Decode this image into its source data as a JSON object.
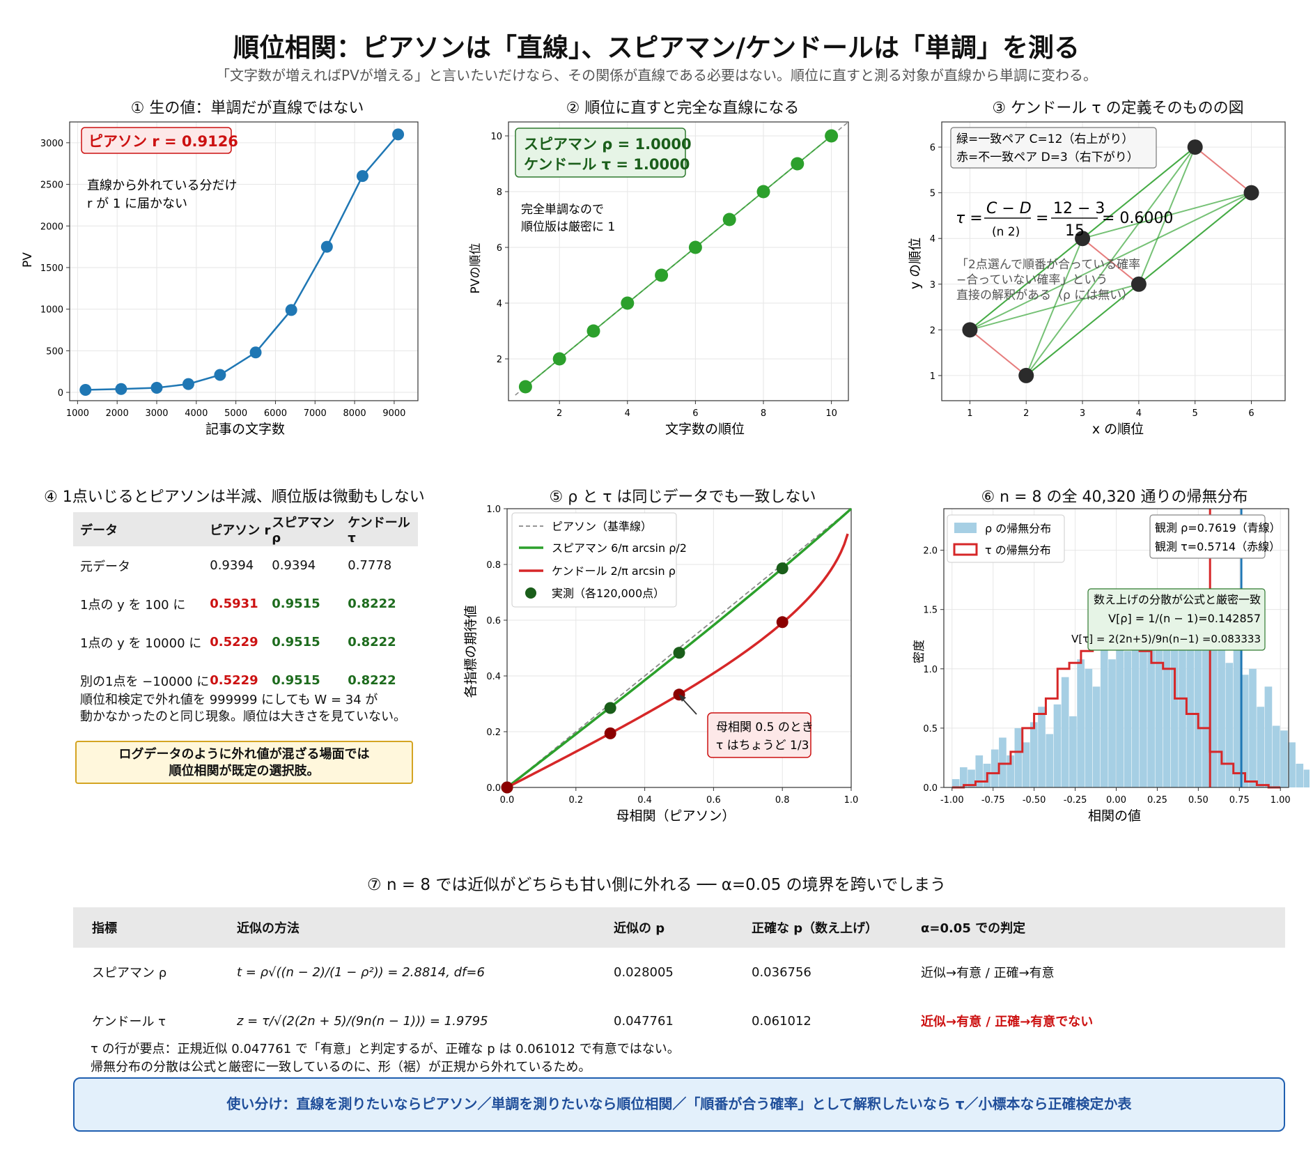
{
  "title": "順位相関：ピアソンは「直線」、スピアマン/ケンドールは「単調」を測る",
  "subtitle": "「文字数が増えればPVが増える」と言いたいだけなら、その関係が直線である必要はない。順位に直すと測る対象が直線から単調に変わる。",
  "panel1": {
    "title": "① 生の値：単調だが直線ではない",
    "badge": "ピアソン r = 0.9126",
    "note_line1": "直線から外れている分だけ",
    "note_line2": "r が 1 に届かない"
  },
  "panel2": {
    "title": "② 順位に直すと完全な直線になる",
    "badge_line1": "スピアマン ρ = 1.0000",
    "badge_line2": "ケンドール τ = 1.0000",
    "note_line1": "完全単調なので",
    "note_line2": "順位版は厳密に 1"
  },
  "panel3": {
    "title": "③ ケンドール τ の定義そのものの図",
    "legend_line1": "緑=一致ペア C=12（右上がり）",
    "legend_line2": "赤=不一致ペア D=3（右下がり）",
    "formula_lhs": "τ =",
    "formula_num": "C − D",
    "formula_den": "(n 2)",
    "formula_eq": "=",
    "formula_num2": "12 − 3",
    "formula_den2": "15",
    "formula_res": "= 0.6000",
    "note_line1": "「2点選んで順番が合っている確率",
    "note_line2": "−合っていない確率」という",
    "note_line3": "直接の解釈がある（ρ には無い）"
  },
  "panel4": {
    "title": "④ 1点いじるとピアソンは半減、順位版は微動もしない",
    "headers": [
      "データ",
      "ピアソン r",
      "スピアマン ρ",
      "ケンドール τ"
    ],
    "rows": [
      [
        "元データ",
        "0.9394",
        "0.9394",
        "0.7778"
      ],
      [
        "1点の y を 100 に",
        "0.5931",
        "0.9515",
        "0.8222"
      ],
      [
        "1点の y を 10000 に",
        "0.5229",
        "0.9515",
        "0.8222"
      ],
      [
        "別の1点を −10000 に",
        "0.5229",
        "0.9515",
        "0.8222"
      ]
    ],
    "note_line1": "順位和検定で外れ値を 999999 にしても W = 34 が",
    "note_line2": "動かなかったのと同じ現象。順位は大きさを見ていない。",
    "box_line1": "ログデータのように外れ値が混ざる場面では",
    "box_line2": "順位相関が既定の選択肢。"
  },
  "panel5": {
    "title": "⑤ ρ と τ は同じデータでも一致しない",
    "legend": [
      "ピアソン（基準線）",
      "スピアマン 6/π arcsin ρ/2",
      "ケンドール 2/π arcsin ρ",
      "実測（各120,000点）"
    ],
    "annotation_line1": "母相関 0.5 のとき",
    "annotation_line2": "τ はちょうど 1/3"
  },
  "panel6": {
    "title": "⑥ n = 8 の全 40,320 通りの帰無分布",
    "legend": [
      "ρ の帰無分布",
      "τ の帰無分布"
    ],
    "obs_line1": "観測 ρ=0.7619（青線）",
    "obs_line2": "観測 τ=0.5714（赤線）",
    "var_line1": "数え上げの分散が公式と厳密一致",
    "var_line2": "V[ρ] = 1/(n − 1)=0.142857",
    "var_line3": "V[τ] = 2(2n+5)/9n(n−1) =0.083333"
  },
  "table7": {
    "title": "⑦ n = 8 では近似がどちらも甘い側に外れる ── α=0.05 の境界を跨いでしまう",
    "headers": [
      "指標",
      "近似の方法",
      "近似の p",
      "正確な p（数え上げ）",
      "α=0.05 での判定"
    ],
    "rows": [
      [
        "スピアマン ρ",
        "t = ρ√((n − 2)/(1 − ρ²)) = 2.8814, df=6",
        "0.028005",
        "0.036756",
        "近似→有意 / 正確→有意"
      ],
      [
        "ケンドール τ",
        "z = τ/√(2(2n + 5)/(9n(n − 1))) = 1.9795",
        "0.047761",
        "0.061012",
        "近似→有意 / 正確→有意でない"
      ]
    ],
    "note_line1": "τ の行が要点：正規近似 0.047761 で「有意」と判定するが、正確な p は 0.061012 で有意ではない。",
    "note_line2": "帰無分布の分散は公式と厳密に一致しているのに、形（裾）が正規から外れているため。"
  },
  "footer": "使い分け：直線を測りたいならピアソン／単調を測りたいなら順位相関／「順番が合う確率」として解釈したいなら τ／小標本なら正確検定か表",
  "colors": {
    "blue": "#1f77b4",
    "green": "#2ca02c",
    "red": "#d62728",
    "darkgreen": "#1a5e1a",
    "darkred": "#8b0000"
  },
  "chart_data": [
    {
      "type": "line",
      "title": "① 生の値：単調だが直線ではない",
      "xlabel": "記事の文字数",
      "ylabel": "PV",
      "x": [
        1200,
        2100,
        3000,
        3800,
        4600,
        5500,
        6400,
        7300,
        8200,
        9100
      ],
      "y": [
        30,
        40,
        55,
        100,
        210,
        480,
        990,
        1750,
        2600,
        3100
      ],
      "xlim": [
        800,
        9600
      ],
      "ylim": [
        -100,
        3250
      ],
      "xticks": [
        1000,
        2000,
        3000,
        4000,
        5000,
        6000,
        7000,
        8000,
        9000
      ],
      "yticks": [
        0,
        500,
        1000,
        1500,
        2000,
        2500,
        3000
      ],
      "grid": true
    },
    {
      "type": "scatter",
      "title": "② 順位に直すと完全な直線になる",
      "xlabel": "文字数の順位",
      "ylabel": "PVの順位",
      "x": [
        1,
        2,
        3,
        4,
        5,
        6,
        7,
        8,
        9,
        10
      ],
      "y": [
        1,
        2,
        3,
        4,
        5,
        6,
        7,
        8,
        9,
        10
      ],
      "xlim": [
        0.5,
        10.5
      ],
      "ylim": [
        0.5,
        10.5
      ],
      "xticks": [
        2,
        4,
        6,
        8,
        10
      ],
      "yticks": [
        2,
        4,
        6,
        8,
        10
      ],
      "grid": true
    },
    {
      "type": "scatter",
      "title": "③ ケンドール τ の定義そのものの図",
      "xlabel": "x の順位",
      "ylabel": "y の順位",
      "x": [
        1,
        2,
        3,
        4,
        5,
        6
      ],
      "y": [
        2,
        1,
        4,
        3,
        6,
        5
      ],
      "xlim": [
        0.5,
        6.6
      ],
      "ylim": [
        0.45,
        6.55
      ],
      "xticks": [
        1,
        2,
        3,
        4,
        5,
        6
      ],
      "yticks": [
        1,
        2,
        3,
        4,
        5,
        6
      ],
      "grid": true
    },
    {
      "type": "line",
      "title": "⑤ ρ と τ は同じデータでも一致しない",
      "xlabel": "母相関（ピアソン）",
      "ylabel": "各指標の期待値",
      "series": [
        {
          "name": "ピアソン（基準線）",
          "x": [
            0,
            1
          ],
          "y": [
            0,
            1
          ]
        },
        {
          "name": "スピアマン 6/π arcsin ρ/2",
          "x": [
            0,
            0.3,
            0.5,
            0.8,
            1.0
          ],
          "y": [
            0,
            0.287,
            0.483,
            0.786,
            1.0
          ]
        },
        {
          "name": "ケンドール 2/π arcsin ρ",
          "x": [
            0,
            0.3,
            0.5,
            0.8,
            0.99
          ],
          "y": [
            0,
            0.194,
            0.333,
            0.59,
            0.91
          ]
        },
        {
          "name": "実測（各120,000点）",
          "x": [
            0,
            0.3,
            0.5,
            0.8,
            0,
            0.3,
            0.5,
            0.8
          ],
          "y": [
            0,
            0.285,
            0.483,
            0.786,
            0,
            0.194,
            0.333,
            0.593
          ]
        }
      ],
      "xlim": [
        0,
        1
      ],
      "ylim": [
        0,
        1
      ],
      "xticks": [
        0.0,
        0.2,
        0.4,
        0.6,
        0.8,
        1.0
      ],
      "yticks": [
        0.0,
        0.2,
        0.4,
        0.6,
        0.8,
        1.0
      ],
      "grid": true
    },
    {
      "type": "bar",
      "title": "⑥ n = 8 の全 40,320 通りの帰無分布",
      "xlabel": "相関の値",
      "ylabel": "密度",
      "series": [
        {
          "name": "ρ の帰無分布",
          "bin_width": 0.0476,
          "bin_start": -1.0,
          "values": [
            0.07,
            0.17,
            0.15,
            0.27,
            0.2,
            0.32,
            0.42,
            0.27,
            0.5,
            0.38,
            0.55,
            0.68,
            0.45,
            0.7,
            0.93,
            0.6,
            1.08,
            1.0,
            0.85,
            1.3,
            1.08,
            1.25,
            1.15,
            1.25,
            1.3,
            1.2,
            1.55,
            1.28,
            1.3,
            1.45,
            1.25,
            1.45,
            1.18,
            1.3,
            1.35,
            1.05,
            1.2,
            0.95,
            1.0,
            0.68,
            0.85,
            0.52,
            0.48,
            0.38,
            0.2,
            0.15,
            0.12,
            0.1,
            0.05
          ]
        },
        {
          "name": "τ の帰無分布",
          "bin_width": 0.0714,
          "bin_start": -1.0,
          "values": [
            0.0,
            0.02,
            0.05,
            0.12,
            0.2,
            0.3,
            0.5,
            0.62,
            0.75,
            1.0,
            1.05,
            1.15,
            1.25,
            1.3,
            1.3,
            1.25,
            1.15,
            1.05,
            1.0,
            0.75,
            0.62,
            0.5,
            0.3,
            0.2,
            0.12,
            0.05,
            0.02,
            0.0
          ]
        }
      ],
      "vlines": [
        {
          "name": "観測 ρ",
          "x": 0.7619
        },
        {
          "name": "観測 τ",
          "x": 0.5714
        }
      ],
      "xlim": [
        -1.05,
        1.05
      ],
      "ylim": [
        0,
        2.35
      ],
      "xticks": [
        -1.0,
        -0.75,
        -0.5,
        -0.25,
        0.0,
        0.25,
        0.5,
        0.75,
        1.0
      ],
      "yticks": [
        0.0,
        0.5,
        1.0,
        1.5,
        2.0
      ],
      "grid": true
    }
  ]
}
